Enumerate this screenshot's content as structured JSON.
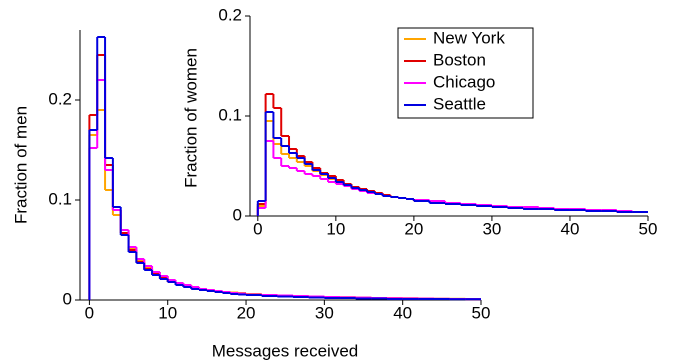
{
  "chart_data": [
    {
      "type": "histogram",
      "xlabel": "Messages received",
      "ylabel": "Fraction of men",
      "bins": [
        0,
        1,
        2,
        3,
        4,
        5,
        6,
        7,
        8,
        9,
        10,
        11,
        12,
        13,
        14,
        15,
        16,
        17,
        18,
        19,
        20,
        22,
        24,
        26,
        28,
        30,
        32,
        34,
        36,
        38,
        40,
        42,
        44,
        46,
        48,
        50
      ],
      "xlim": [
        -1.2,
        50
      ],
      "ylim": [
        0,
        0.27
      ],
      "xticks": [
        0,
        10,
        20,
        30,
        40,
        50
      ],
      "yticks": [
        0,
        0.1,
        0.2
      ],
      "series": [
        {
          "name": "New York",
          "color": "#ffa500",
          "values": [
            0.165,
            0.19,
            0.11,
            0.085,
            0.07,
            0.052,
            0.04,
            0.033,
            0.028,
            0.024,
            0.02,
            0.017,
            0.015,
            0.013,
            0.011,
            0.01,
            0.009,
            0.008,
            0.0075,
            0.007,
            0.006,
            0.005,
            0.0045,
            0.004,
            0.0035,
            0.003,
            0.0028,
            0.0025,
            0.002,
            0.002,
            0.0018,
            0.0015,
            0.0013,
            0.0012,
            0.001
          ]
        },
        {
          "name": "Boston",
          "color": "#e00000",
          "values": [
            0.185,
            0.245,
            0.135,
            0.09,
            0.067,
            0.05,
            0.038,
            0.031,
            0.026,
            0.022,
            0.018,
            0.016,
            0.013,
            0.012,
            0.01,
            0.009,
            0.008,
            0.007,
            0.0065,
            0.006,
            0.005,
            0.0045,
            0.004,
            0.0035,
            0.003,
            0.0025,
            0.0022,
            0.002,
            0.0018,
            0.0015,
            0.0013,
            0.0012,
            0.001,
            0.001,
            0.0008
          ]
        },
        {
          "name": "Chicago",
          "color": "#ff00ff",
          "values": [
            0.152,
            0.22,
            0.13,
            0.09,
            0.07,
            0.053,
            0.041,
            0.034,
            0.028,
            0.024,
            0.02,
            0.017,
            0.015,
            0.013,
            0.011,
            0.01,
            0.009,
            0.008,
            0.007,
            0.0065,
            0.0055,
            0.005,
            0.0045,
            0.004,
            0.0035,
            0.003,
            0.0027,
            0.0024,
            0.002,
            0.0018,
            0.0016,
            0.0014,
            0.0012,
            0.001,
            0.0009
          ]
        },
        {
          "name": "Seattle",
          "color": "#0000e0",
          "values": [
            0.17,
            0.263,
            0.142,
            0.093,
            0.065,
            0.048,
            0.037,
            0.03,
            0.025,
            0.021,
            0.018,
            0.015,
            0.013,
            0.011,
            0.01,
            0.009,
            0.008,
            0.007,
            0.006,
            0.0055,
            0.005,
            0.004,
            0.0035,
            0.003,
            0.0025,
            0.002,
            0.002,
            0.0015,
            0.0015,
            0.001,
            0.001,
            0.001,
            0.001,
            0.0008,
            0.0008
          ]
        }
      ]
    },
    {
      "type": "histogram",
      "ylabel": "Fraction of women",
      "legend": "upper right",
      "bins": [
        0,
        1,
        2,
        3,
        4,
        5,
        6,
        7,
        8,
        9,
        10,
        11,
        12,
        13,
        14,
        15,
        16,
        17,
        18,
        19,
        20,
        22,
        24,
        26,
        28,
        30,
        32,
        34,
        36,
        38,
        40,
        42,
        44,
        46,
        48,
        50
      ],
      "xlim": [
        -1,
        50
      ],
      "ylim": [
        0,
        0.2
      ],
      "xticks": [
        0,
        10,
        20,
        30,
        40,
        50
      ],
      "yticks": [
        0,
        0.1,
        0.2
      ],
      "series": [
        {
          "name": "New York",
          "color": "#ffa500",
          "values": [
            0.01,
            0.095,
            0.072,
            0.062,
            0.058,
            0.054,
            0.05,
            0.045,
            0.041,
            0.037,
            0.034,
            0.031,
            0.028,
            0.026,
            0.024,
            0.022,
            0.02,
            0.019,
            0.018,
            0.017,
            0.015,
            0.014,
            0.012,
            0.011,
            0.01,
            0.009,
            0.008,
            0.008,
            0.007,
            0.006,
            0.006,
            0.005,
            0.005,
            0.004,
            0.004
          ]
        },
        {
          "name": "Boston",
          "color": "#e00000",
          "values": [
            0.012,
            0.122,
            0.108,
            0.08,
            0.067,
            0.06,
            0.054,
            0.048,
            0.043,
            0.04,
            0.036,
            0.032,
            0.029,
            0.027,
            0.025,
            0.023,
            0.021,
            0.019,
            0.018,
            0.017,
            0.015,
            0.013,
            0.012,
            0.011,
            0.01,
            0.009,
            0.008,
            0.007,
            0.007,
            0.006,
            0.006,
            0.005,
            0.005,
            0.004,
            0.004
          ]
        },
        {
          "name": "Chicago",
          "color": "#ff00ff",
          "values": [
            0.008,
            0.075,
            0.058,
            0.05,
            0.048,
            0.045,
            0.042,
            0.04,
            0.037,
            0.034,
            0.032,
            0.03,
            0.027,
            0.025,
            0.023,
            0.022,
            0.02,
            0.019,
            0.018,
            0.017,
            0.016,
            0.015,
            0.013,
            0.012,
            0.011,
            0.01,
            0.009,
            0.009,
            0.008,
            0.007,
            0.007,
            0.006,
            0.006,
            0.005,
            0.004
          ]
        },
        {
          "name": "Seattle",
          "color": "#0000e0",
          "values": [
            0.015,
            0.104,
            0.078,
            0.07,
            0.063,
            0.058,
            0.052,
            0.046,
            0.042,
            0.038,
            0.034,
            0.031,
            0.028,
            0.026,
            0.024,
            0.022,
            0.02,
            0.019,
            0.018,
            0.017,
            0.015,
            0.013,
            0.012,
            0.011,
            0.01,
            0.009,
            0.008,
            0.007,
            0.007,
            0.006,
            0.006,
            0.005,
            0.005,
            0.004,
            0.004
          ]
        }
      ]
    }
  ]
}
